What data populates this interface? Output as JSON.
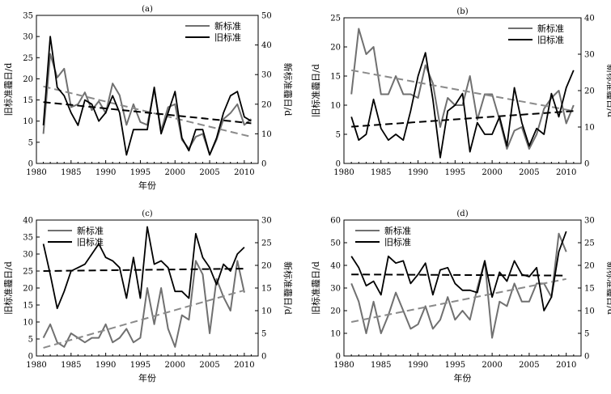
{
  "colors": {
    "new_standard": "#707070",
    "old_standard": "#000000",
    "new_trend": "#8a8a8a",
    "old_trend": "#000000",
    "axis": "#000000"
  },
  "chart_data": [
    {
      "type": "line",
      "panel_label": "(a)",
      "xlabel": "年份",
      "ylabel_left": "旧标准霾日/d",
      "ylabel_right": "新标准霾日/d",
      "xlim": [
        1980,
        2012
      ],
      "ylim_left": [
        0,
        35
      ],
      "ylim_right": [
        0,
        50
      ],
      "xticks": [
        1980,
        1985,
        1990,
        1995,
        2000,
        2005,
        2010
      ],
      "yticks_left": [
        0,
        5,
        10,
        15,
        20,
        25,
        30,
        35
      ],
      "yticks_right": [
        0,
        10,
        20,
        30,
        40,
        50
      ],
      "legend": "top-right",
      "x": [
        1981,
        1982,
        1983,
        1984,
        1985,
        1986,
        1987,
        1988,
        1989,
        1990,
        1991,
        1992,
        1993,
        1994,
        1995,
        1996,
        1997,
        1998,
        1999,
        2000,
        2001,
        2002,
        2003,
        2004,
        2005,
        2006,
        2007,
        2008,
        2009,
        2010,
        2011
      ],
      "series": [
        {
          "name": "新标准",
          "axis": "right",
          "values": [
            10,
            37,
            29,
            32,
            19,
            20,
            24,
            18,
            21,
            17,
            27,
            23,
            13,
            20,
            14,
            13,
            25,
            11,
            19,
            20,
            8,
            5,
            9,
            10,
            3,
            8,
            15,
            17,
            20,
            13,
            15
          ],
          "trend": [
            26,
            9
          ]
        },
        {
          "name": "旧标准",
          "axis": "left",
          "values": [
            9,
            30,
            18,
            16,
            12,
            9,
            15,
            14,
            10,
            12,
            16,
            12,
            2,
            8,
            8,
            8,
            18,
            7,
            12,
            17,
            6,
            3,
            8,
            8,
            2,
            6,
            12,
            16,
            17,
            11,
            10
          ],
          "trend": [
            14.5,
            9.5
          ]
        }
      ]
    },
    {
      "type": "line",
      "panel_label": "(b)",
      "xlabel": "",
      "ylabel_left": "旧标准霾日/d",
      "ylabel_right": "新标准霾日/d",
      "xlim": [
        1980,
        2012
      ],
      "ylim_left": [
        0,
        25
      ],
      "ylim_right": [
        0,
        40
      ],
      "xticks": [
        1980,
        1985,
        1990,
        1995,
        2000,
        2005,
        2010
      ],
      "yticks_left": [
        0,
        5,
        10,
        15,
        20,
        25
      ],
      "yticks_right": [
        0,
        10,
        20,
        30,
        40
      ],
      "legend": "top-right",
      "x": [
        1981,
        1982,
        1983,
        1984,
        1985,
        1986,
        1987,
        1988,
        1989,
        1990,
        1991,
        1992,
        1993,
        1994,
        1995,
        1996,
        1997,
        1998,
        1999,
        2000,
        2001,
        2002,
        2003,
        2004,
        2005,
        2006,
        2007,
        2008,
        2009,
        2010,
        2011
      ],
      "series": [
        {
          "name": "新标准",
          "axis": "right",
          "values": [
            19,
            37,
            30,
            32,
            19,
            19,
            24,
            19,
            19,
            18,
            27,
            22,
            10,
            18,
            16,
            16,
            24,
            12,
            19,
            19,
            12,
            4,
            9,
            10,
            4,
            8,
            15,
            18,
            20,
            11,
            16
          ],
          "trend": [
            25.6,
            14.4
          ]
        },
        {
          "name": "旧标准",
          "axis": "left",
          "values": [
            8,
            4,
            5,
            11,
            6,
            4,
            5,
            4,
            9,
            15,
            19,
            11,
            1,
            9,
            10,
            12,
            2,
            7,
            5,
            5,
            8,
            3,
            13,
            7,
            3,
            6,
            5,
            12,
            8,
            13,
            16
          ],
          "trend": [
            6.3,
            9.0
          ]
        }
      ]
    },
    {
      "type": "line",
      "panel_label": "(c)",
      "xlabel": "年份",
      "ylabel_left": "旧标准霾日/d",
      "ylabel_right": "新标准霾日/d",
      "xlim": [
        1980,
        2012
      ],
      "ylim_left": [
        0,
        40
      ],
      "ylim_right": [
        0,
        30
      ],
      "xticks": [
        1980,
        1985,
        1990,
        1995,
        2000,
        2005,
        2010
      ],
      "yticks_left": [
        0,
        5,
        10,
        15,
        20,
        25,
        30,
        35,
        40
      ],
      "yticks_right": [
        0,
        5,
        10,
        15,
        20,
        25,
        30
      ],
      "legend": "top-left",
      "x": [
        1981,
        1982,
        1983,
        1984,
        1985,
        1986,
        1987,
        1988,
        1989,
        1990,
        1991,
        1992,
        1993,
        1994,
        1995,
        1996,
        1997,
        1998,
        1999,
        2000,
        2001,
        2002,
        2003,
        2004,
        2005,
        2006,
        2007,
        2008,
        2009,
        2010
      ],
      "series": [
        {
          "name": "新标准",
          "axis": "right",
          "values": [
            4,
            7,
            3,
            2,
            5,
            4,
            3,
            4,
            4,
            7,
            3,
            4,
            6,
            3,
            4,
            15,
            7,
            15,
            6,
            2,
            9,
            8,
            21,
            18,
            5,
            17,
            13,
            10,
            21,
            14
          ],
          "trend": [
            1.8,
            14.5
          ]
        },
        {
          "name": "旧标准",
          "axis": "left",
          "values": [
            33,
            24,
            14,
            19,
            25,
            26,
            27,
            30,
            33,
            29,
            28,
            26,
            17,
            29,
            17,
            38,
            27,
            28,
            26,
            19,
            19,
            17,
            36,
            29,
            26,
            21,
            27,
            25,
            30,
            32
          ],
          "trend": [
            25.0,
            25.7
          ]
        }
      ]
    },
    {
      "type": "line",
      "panel_label": "(d)",
      "xlabel": "年份",
      "ylabel_left": "旧标准霾日/d",
      "ylabel_right": "新标准霾日/d",
      "xlim": [
        1980,
        2012
      ],
      "ylim_left": [
        0,
        60
      ],
      "ylim_right": [
        0,
        30
      ],
      "xticks": [
        1980,
        1985,
        1990,
        1995,
        2000,
        2005,
        2010
      ],
      "yticks_left": [
        0,
        10,
        20,
        30,
        40,
        50,
        60
      ],
      "yticks_right": [
        0,
        5,
        10,
        15,
        20,
        25,
        30
      ],
      "legend": "top-left",
      "x": [
        1981,
        1982,
        1983,
        1984,
        1985,
        1986,
        1987,
        1988,
        1989,
        1990,
        1991,
        1992,
        1993,
        1994,
        1995,
        1996,
        1997,
        1998,
        1999,
        2000,
        2001,
        2002,
        2003,
        2004,
        2005,
        2006,
        2007,
        2008,
        2009,
        2010
      ],
      "series": [
        {
          "name": "新标准",
          "axis": "right",
          "values": [
            16,
            12,
            5,
            12,
            5,
            9,
            14,
            10,
            6,
            7,
            11,
            6,
            8,
            13,
            8,
            10,
            8,
            15,
            21,
            4,
            12,
            11,
            16,
            12,
            12,
            16,
            16,
            13,
            27,
            23
          ],
          "trend": [
            7.5,
            17.0
          ]
        },
        {
          "name": "旧标准",
          "axis": "left",
          "values": [
            44,
            39,
            31,
            33,
            27,
            44,
            41,
            42,
            32,
            36,
            41,
            27,
            38,
            39,
            32,
            29,
            29,
            28,
            42,
            26,
            37,
            33,
            42,
            36,
            35,
            39,
            20,
            26,
            46,
            55
          ],
          "trend": [
            36.0,
            35.5
          ]
        }
      ]
    }
  ]
}
